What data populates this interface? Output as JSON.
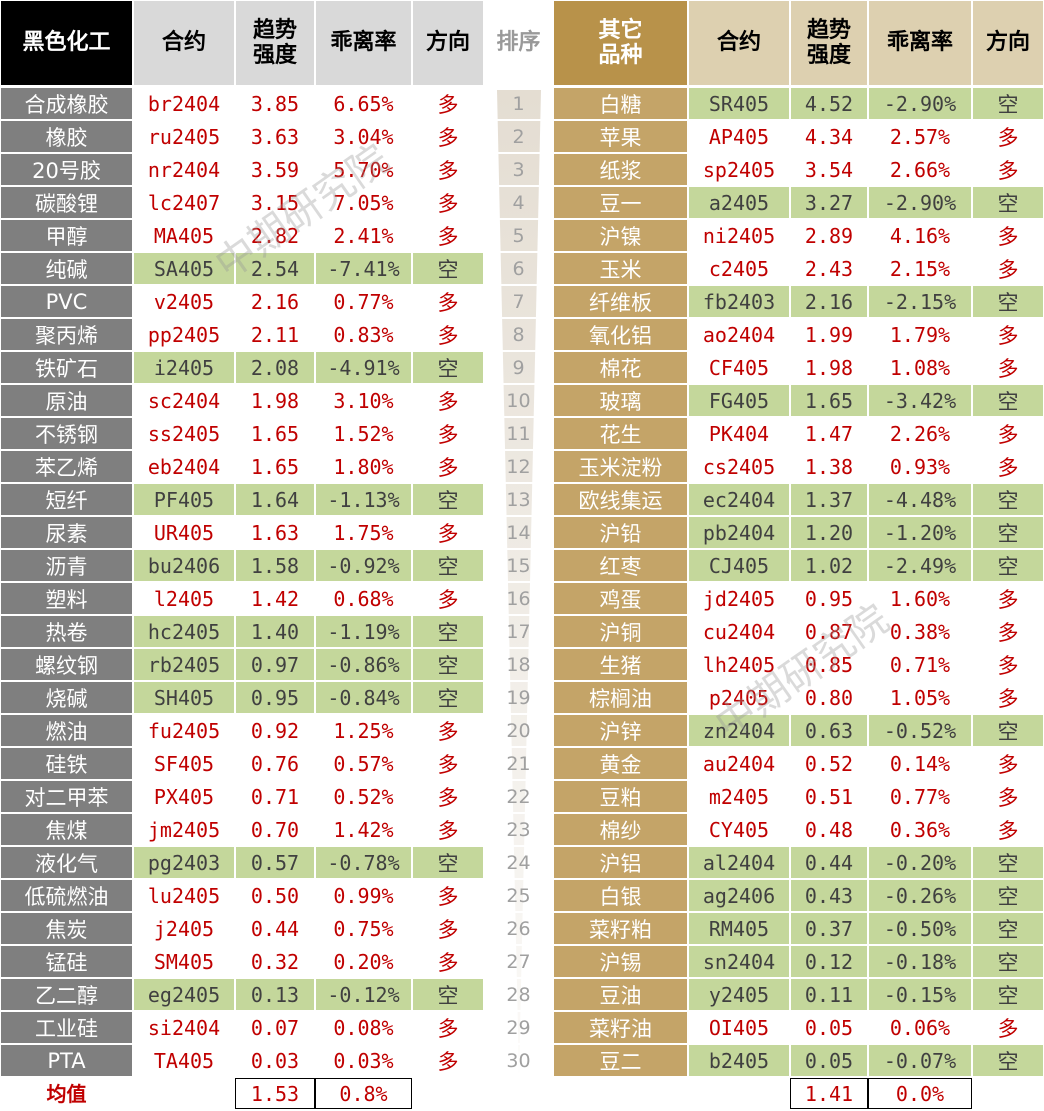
{
  "left_table": {
    "header": [
      "黑色化工",
      "合约",
      "趋势\n强度",
      "乖离率",
      "方向"
    ],
    "rows": [
      [
        "合成橡胶",
        "br2404",
        "3.85",
        "6.65%",
        "多"
      ],
      [
        "橡胶",
        "ru2405",
        "3.63",
        "3.04%",
        "多"
      ],
      [
        "20号胶",
        "nr2404",
        "3.59",
        "5.70%",
        "多"
      ],
      [
        "碳酸锂",
        "lc2407",
        "3.15",
        "7.05%",
        "多"
      ],
      [
        "甲醇",
        "MA405",
        "2.82",
        "2.41%",
        "多"
      ],
      [
        "纯碱",
        "SA405",
        "2.54",
        "-7.41%",
        "空"
      ],
      [
        "PVC",
        "v2405",
        "2.16",
        "0.77%",
        "多"
      ],
      [
        "聚丙烯",
        "pp2405",
        "2.11",
        "0.83%",
        "多"
      ],
      [
        "铁矿石",
        "i2405",
        "2.08",
        "-4.91%",
        "空"
      ],
      [
        "原油",
        "sc2404",
        "1.98",
        "3.10%",
        "多"
      ],
      [
        "不锈钢",
        "ss2405",
        "1.65",
        "1.52%",
        "多"
      ],
      [
        "苯乙烯",
        "eb2404",
        "1.65",
        "1.80%",
        "多"
      ],
      [
        "短纤",
        "PF405",
        "1.64",
        "-1.13%",
        "空"
      ],
      [
        "尿素",
        "UR405",
        "1.63",
        "1.75%",
        "多"
      ],
      [
        "沥青",
        "bu2406",
        "1.58",
        "-0.92%",
        "空"
      ],
      [
        "塑料",
        "l2405",
        "1.42",
        "0.68%",
        "多"
      ],
      [
        "热卷",
        "hc2405",
        "1.40",
        "-1.19%",
        "空"
      ],
      [
        "螺纹钢",
        "rb2405",
        "0.97",
        "-0.86%",
        "空"
      ],
      [
        "烧碱",
        "SH405",
        "0.95",
        "-0.84%",
        "空"
      ],
      [
        "燃油",
        "fu2405",
        "0.92",
        "1.25%",
        "多"
      ],
      [
        "硅铁",
        "SF405",
        "0.76",
        "0.57%",
        "多"
      ],
      [
        "对二甲苯",
        "PX405",
        "0.71",
        "0.52%",
        "多"
      ],
      [
        "焦煤",
        "jm2405",
        "0.70",
        "1.42%",
        "多"
      ],
      [
        "液化气",
        "pg2403",
        "0.57",
        "-0.78%",
        "空"
      ],
      [
        "低硫燃油",
        "lu2405",
        "0.50",
        "0.99%",
        "多"
      ],
      [
        "焦炭",
        "j2405",
        "0.44",
        "0.75%",
        "多"
      ],
      [
        "锰硅",
        "SM405",
        "0.32",
        "0.20%",
        "多"
      ],
      [
        "乙二醇",
        "eg2405",
        "0.13",
        "-0.12%",
        "空"
      ],
      [
        "工业硅",
        "si2404",
        "0.07",
        "0.08%",
        "多"
      ],
      [
        "PTA",
        "TA405",
        "0.03",
        "0.03%",
        "多"
      ]
    ],
    "footer": {
      "label": "均值",
      "values": [
        "1.53",
        "0.8%"
      ]
    }
  },
  "rank": {
    "header": "排序",
    "values": [
      "1",
      "2",
      "3",
      "4",
      "5",
      "6",
      "7",
      "8",
      "9",
      "10",
      "11",
      "12",
      "13",
      "14",
      "15",
      "16",
      "17",
      "18",
      "19",
      "20",
      "21",
      "22",
      "23",
      "24",
      "25",
      "26",
      "27",
      "28",
      "29",
      "30"
    ]
  },
  "right_table": {
    "header": [
      "其它\n品种",
      "合约",
      "趋势\n强度",
      "乖离率",
      "方向"
    ],
    "rows": [
      [
        "白糖",
        "SR405",
        "4.52",
        "-2.90%",
        "空"
      ],
      [
        "苹果",
        "AP405",
        "4.34",
        "2.57%",
        "多"
      ],
      [
        "纸浆",
        "sp2405",
        "3.54",
        "2.66%",
        "多"
      ],
      [
        "豆一",
        "a2405",
        "3.27",
        "-2.90%",
        "空"
      ],
      [
        "沪镍",
        "ni2405",
        "2.89",
        "4.16%",
        "多"
      ],
      [
        "玉米",
        "c2405",
        "2.43",
        "2.15%",
        "多"
      ],
      [
        "纤维板",
        "fb2403",
        "2.16",
        "-2.15%",
        "空"
      ],
      [
        "氧化铝",
        "ao2404",
        "1.99",
        "1.79%",
        "多"
      ],
      [
        "棉花",
        "CF405",
        "1.98",
        "1.08%",
        "多"
      ],
      [
        "玻璃",
        "FG405",
        "1.65",
        "-3.42%",
        "空"
      ],
      [
        "花生",
        "PK404",
        "1.47",
        "2.26%",
        "多"
      ],
      [
        "玉米淀粉",
        "cs2405",
        "1.38",
        "0.93%",
        "多"
      ],
      [
        "欧线集运",
        "ec2404",
        "1.37",
        "-4.48%",
        "空"
      ],
      [
        "沪铅",
        "pb2404",
        "1.20",
        "-1.20%",
        "空"
      ],
      [
        "红枣",
        "CJ405",
        "1.02",
        "-2.49%",
        "空"
      ],
      [
        "鸡蛋",
        "jd2405",
        "0.95",
        "1.60%",
        "多"
      ],
      [
        "沪铜",
        "cu2404",
        "0.87",
        "0.38%",
        "多"
      ],
      [
        "生猪",
        "lh2405",
        "0.85",
        "0.71%",
        "多"
      ],
      [
        "棕榈油",
        "p2405",
        "0.80",
        "1.05%",
        "多"
      ],
      [
        "沪锌",
        "zn2404",
        "0.63",
        "-0.52%",
        "空"
      ],
      [
        "黄金",
        "au2404",
        "0.52",
        "0.14%",
        "多"
      ],
      [
        "豆粕",
        "m2405",
        "0.51",
        "0.77%",
        "多"
      ],
      [
        "棉纱",
        "CY405",
        "0.48",
        "0.36%",
        "多"
      ],
      [
        "沪铝",
        "al2404",
        "0.44",
        "-0.20%",
        "空"
      ],
      [
        "白银",
        "ag2406",
        "0.43",
        "-0.26%",
        "空"
      ],
      [
        "菜籽粕",
        "RM405",
        "0.37",
        "-0.50%",
        "空"
      ],
      [
        "沪锡",
        "sn2404",
        "0.12",
        "-0.18%",
        "空"
      ],
      [
        "豆油",
        "y2405",
        "0.11",
        "-0.15%",
        "空"
      ],
      [
        "菜籽油",
        "OI405",
        "0.05",
        "0.06%",
        "多"
      ],
      [
        "豆二",
        "b2405",
        "0.05",
        "-0.07%",
        "空"
      ]
    ],
    "footer": {
      "values": [
        "1.41",
        "0.0%"
      ]
    }
  },
  "watermark": "中期研究院"
}
